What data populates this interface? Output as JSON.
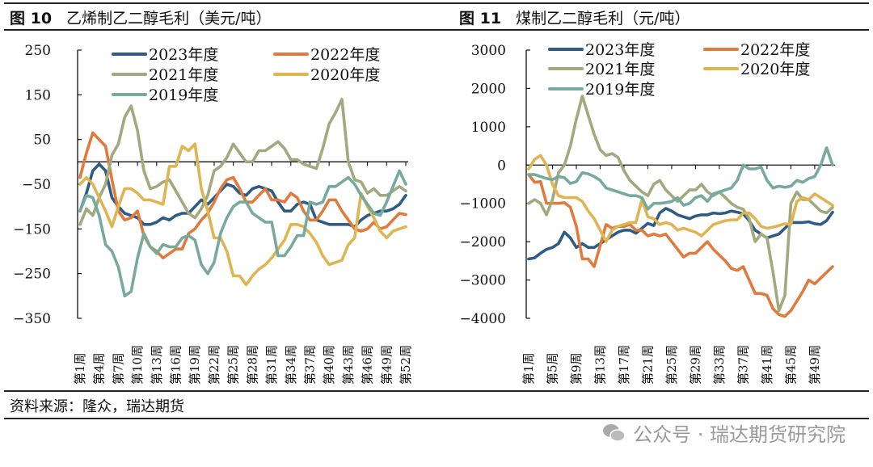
{
  "header": {
    "fig1_label": "图 10",
    "fig1_title": "乙烯制乙二醇毛利（美元/吨）",
    "fig2_label": "图 11",
    "fig2_title": "煤制乙二醇毛利（元/吨）"
  },
  "footer": {
    "source": "资料来源：隆众，瑞达期货",
    "watermark": "公众号 · 瑞达期货研究院",
    "watermark_icon": "wechat-icon"
  },
  "colors": {
    "2023年度": "#2e5c82",
    "2022年度": "#e07b3e",
    "2021年度": "#a3a97f",
    "2020年度": "#dfb552",
    "2019年度": "#77aa9c"
  },
  "chart_data": [
    {
      "type": "line",
      "title": "乙烯制乙二醇毛利（美元/吨）",
      "ylim": [
        -350,
        250
      ],
      "yticks": [
        250,
        150,
        50,
        -50,
        -150,
        -250,
        -350
      ],
      "xtick_labels": [
        "第1周",
        "第4周",
        "第7周",
        "第10周",
        "第13周",
        "第16周",
        "第19周",
        "第22周",
        "第25周",
        "第28周",
        "第31周",
        "第34周",
        "第37周",
        "第40周",
        "第43周",
        "第46周",
        "第49周",
        "第52周"
      ],
      "x_weeks": 52,
      "legend": "top",
      "grid": false,
      "series": [
        {
          "name": "2023年度",
          "values": [
            -110,
            -70,
            -20,
            -5,
            -20,
            -80,
            -100,
            -115,
            -120,
            -125,
            -140,
            -140,
            -135,
            -125,
            -130,
            -120,
            -115,
            -115,
            -100,
            -85,
            -95,
            -80,
            -65,
            -50,
            -55,
            -70,
            -75,
            -60,
            -55,
            -60,
            -65,
            -90,
            -110,
            -110,
            -95,
            -90,
            -95,
            -130,
            -135,
            -140,
            -140,
            -140,
            -140,
            -145,
            -130,
            -120,
            -115,
            -110,
            -110,
            -105,
            -95,
            -75
          ]
        },
        {
          "name": "2022年度",
          "values": [
            -35,
            20,
            65,
            50,
            35,
            -40,
            -110,
            -130,
            -125,
            -110,
            -165,
            -190,
            -200,
            -215,
            -205,
            -195,
            -195,
            -160,
            -150,
            -130,
            -115,
            -90,
            -60,
            -40,
            -35,
            -60,
            -90,
            -90,
            -75,
            -60,
            -85,
            -85,
            -90,
            -70,
            -80,
            -110,
            -130,
            -130,
            -110,
            -85,
            -85,
            -110,
            -130,
            -150,
            -155,
            -150,
            -135,
            -150,
            -145,
            -130,
            -115,
            -118
          ]
        },
        {
          "name": "2021年度",
          "values": [
            -140,
            -105,
            -120,
            -80,
            -50,
            15,
            40,
            100,
            125,
            70,
            -20,
            -60,
            -55,
            -45,
            -40,
            -65,
            -90,
            -115,
            -125,
            -105,
            -75,
            -20,
            -10,
            10,
            40,
            20,
            0,
            0,
            25,
            25,
            35,
            45,
            30,
            5,
            5,
            -5,
            -10,
            -15,
            30,
            85,
            110,
            140,
            0,
            -40,
            -45,
            -70,
            -60,
            -75,
            -75,
            -65,
            -55,
            -65
          ]
        },
        {
          "name": "2020年度",
          "values": [
            -50,
            -35,
            -50,
            -80,
            -110,
            -145,
            -100,
            -60,
            -60,
            -70,
            -85,
            -85,
            -90,
            -95,
            -10,
            -10,
            35,
            25,
            40,
            -60,
            -110,
            -170,
            -170,
            -200,
            -255,
            -255,
            -275,
            -255,
            -240,
            -230,
            -215,
            -195,
            -175,
            -140,
            -140,
            -145,
            -160,
            -180,
            -210,
            -230,
            -225,
            -220,
            -185,
            -170,
            -70,
            -100,
            -125,
            -155,
            -170,
            -155,
            -150,
            -145
          ]
        },
        {
          "name": "2019年度",
          "values": [
            -110,
            -75,
            -80,
            -120,
            -185,
            -200,
            -235,
            -300,
            -290,
            -215,
            -160,
            -190,
            -205,
            -185,
            -190,
            -190,
            -170,
            -165,
            -175,
            -230,
            -250,
            -225,
            -160,
            -125,
            -100,
            -90,
            -90,
            -115,
            -125,
            -135,
            -135,
            -210,
            -210,
            -190,
            -165,
            -165,
            -90,
            -95,
            -90,
            -55,
            -55,
            -45,
            -35,
            -50,
            -75,
            -95,
            -115,
            -120,
            -90,
            -55,
            -20,
            -50
          ]
        }
      ]
    },
    {
      "type": "line",
      "title": "煤制乙二醇毛利（元/吨）",
      "ylim": [
        -4000,
        3000
      ],
      "yticks": [
        3000,
        2000,
        1000,
        0,
        -1000,
        -2000,
        -3000,
        -4000
      ],
      "xtick_labels": [
        "第1周",
        "第5周",
        "第9周",
        "第13周",
        "第17周",
        "第21周",
        "第25周",
        "第29周",
        "第33周",
        "第37周",
        "第41周",
        "第45周",
        "第49周"
      ],
      "x_weeks": 52,
      "legend": "top",
      "grid": false,
      "series": [
        {
          "name": "2023年度",
          "values": [
            -2450,
            -2420,
            -2300,
            -2200,
            -2150,
            -2050,
            -1750,
            -1900,
            -2150,
            -2050,
            -2150,
            -2150,
            -2050,
            -1950,
            -1850,
            -1750,
            -1700,
            -1700,
            -1780,
            -1650,
            -1520,
            -1580,
            -1250,
            -1130,
            -1200,
            -1300,
            -1350,
            -1400,
            -1330,
            -1300,
            -1300,
            -1250,
            -1270,
            -1250,
            -1200,
            -1230,
            -1270,
            -1450,
            -1700,
            -1800,
            -1900,
            -1850,
            -1800,
            -1650,
            -1500,
            -1500,
            -1500,
            -1480,
            -1530,
            -1550,
            -1450,
            -1230
          ]
        },
        {
          "name": "2022年度",
          "values": [
            -250,
            -450,
            -430,
            -1000,
            -1000,
            -1000,
            -980,
            -1100,
            -1600,
            -2450,
            -2450,
            -2650,
            -2100,
            -1550,
            -1650,
            -1600,
            -1600,
            -1550,
            -1700,
            -1700,
            -1850,
            -1800,
            -1850,
            -1800,
            -2000,
            -2200,
            -2400,
            -2300,
            -2300,
            -2150,
            -2000,
            -2200,
            -2350,
            -2500,
            -2700,
            -2750,
            -2650,
            -3000,
            -3350,
            -3350,
            -3400,
            -3750,
            -3900,
            -3950,
            -3800,
            -3550,
            -3300,
            -3000,
            -3100,
            -2950,
            -2800,
            -2650
          ]
        },
        {
          "name": "2021年度",
          "values": [
            -1000,
            -900,
            -1000,
            -1300,
            -900,
            -200,
            0,
            500,
            1200,
            1800,
            1300,
            800,
            400,
            250,
            300,
            200,
            -150,
            -400,
            -550,
            -700,
            -800,
            -500,
            -400,
            -650,
            -800,
            -950,
            -800,
            -650,
            -650,
            -500,
            -700,
            -800,
            -700,
            -850,
            -1000,
            -1100,
            -1150,
            -1400,
            -2000,
            -1800,
            -1900,
            -2800,
            -3800,
            -3400,
            -1000,
            -700,
            -900,
            -900,
            -1050,
            -1200,
            -1250,
            -1100
          ]
        },
        {
          "name": "2020年度",
          "values": [
            -100,
            150,
            250,
            0,
            -500,
            -800,
            -850,
            -850,
            -850,
            -950,
            -1200,
            -1400,
            -1700,
            -2000,
            -1700,
            -1600,
            -1550,
            -1500,
            -1500,
            -900,
            -1350,
            -1400,
            -1550,
            -1500,
            -1550,
            -1700,
            -1650,
            -1700,
            -1750,
            -1850,
            -1700,
            -1550,
            -1500,
            -1450,
            -1430,
            -1430,
            -1250,
            -1250,
            -1400,
            -1600,
            -1650,
            -1620,
            -1580,
            -1530,
            -1550,
            -950,
            -850,
            -900,
            -750,
            -850,
            -950,
            -1050
          ]
        },
        {
          "name": "2019年度",
          "values": [
            -250,
            -250,
            -300,
            -350,
            -380,
            -300,
            -330,
            -480,
            -430,
            -200,
            -230,
            -300,
            -400,
            -600,
            -650,
            -700,
            -750,
            -800,
            -800,
            -850,
            -1150,
            -1000,
            -1000,
            -980,
            -950,
            -850,
            -1050,
            -1000,
            -850,
            -800,
            -950,
            -750,
            -700,
            -650,
            -600,
            -400,
            0,
            -100,
            -100,
            -50,
            -400,
            -600,
            -550,
            -580,
            -550,
            -400,
            -450,
            -350,
            -300,
            0,
            450,
            0
          ]
        }
      ]
    }
  ]
}
